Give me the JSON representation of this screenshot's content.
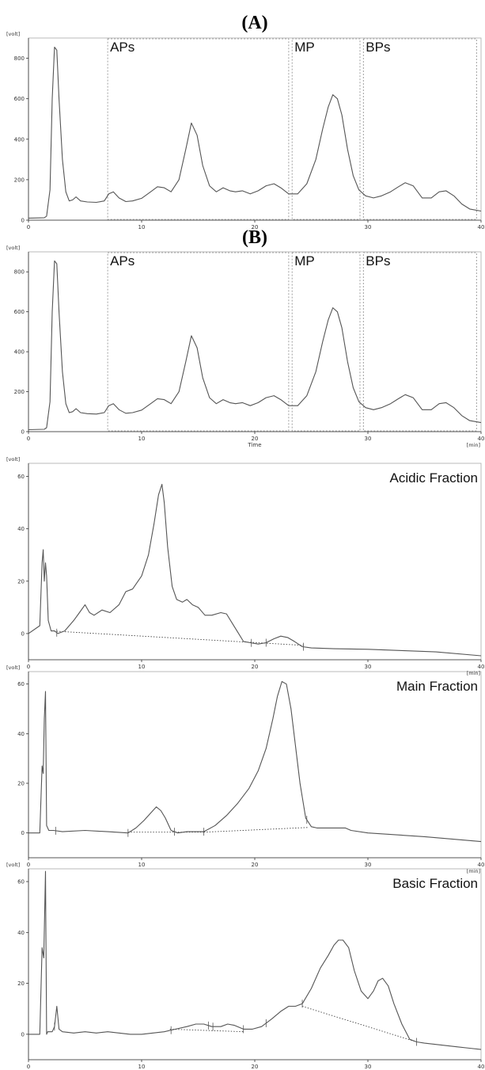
{
  "colors": {
    "trace": "#555555",
    "axis": "#333333",
    "frame": "#aaaaaa",
    "box": "#888888",
    "baseline": "#444444"
  },
  "chart_data": [
    {
      "type": "line",
      "panel_title": "(A)",
      "ylabel": "[volt]",
      "xlabel": "",
      "xunit": "",
      "xlim": [
        0,
        40
      ],
      "ylim": [
        0,
        900
      ],
      "yticks": [
        0,
        200,
        400,
        600,
        800
      ],
      "xticks": [
        0,
        10,
        20,
        30,
        40
      ],
      "regions": [
        {
          "label": "APs",
          "x": [
            7,
            23
          ]
        },
        {
          "label": "MP",
          "x": [
            23.3,
            29.3
          ]
        },
        {
          "label": "BPs",
          "x": [
            29.6,
            39.6
          ]
        }
      ],
      "series": [
        {
          "x": [
            0,
            1.4,
            1.6,
            1.9,
            2.1,
            2.3,
            2.5,
            2.7,
            3.0,
            3.3,
            3.6,
            3.9,
            4.2,
            4.6,
            5.2,
            6.0,
            6.7,
            7.1,
            7.5,
            8.0,
            8.6,
            9.2,
            10.0,
            10.8,
            11.4,
            12.0,
            12.6,
            13.3,
            13.9,
            14.4,
            14.9,
            15.4,
            16.0,
            16.6,
            17.2,
            17.8,
            18.3,
            18.9,
            19.6,
            20.3,
            21.0,
            21.7,
            22.3,
            23.0,
            23.8,
            24.6,
            25.4,
            26.0,
            26.5,
            26.9,
            27.3,
            27.7,
            28.2,
            28.7,
            29.2,
            29.8,
            30.5,
            31.2,
            32.0,
            32.7,
            33.3,
            34.0,
            34.8,
            35.6,
            36.3,
            36.9,
            37.6,
            38.3,
            39.0,
            40.0
          ],
          "y": [
            10,
            12,
            20,
            150,
            600,
            855,
            840,
            600,
            300,
            140,
            95,
            100,
            115,
            95,
            90,
            88,
            95,
            130,
            140,
            110,
            92,
            95,
            108,
            140,
            165,
            160,
            140,
            200,
            350,
            480,
            420,
            270,
            170,
            140,
            160,
            145,
            140,
            145,
            130,
            145,
            170,
            180,
            160,
            130,
            130,
            180,
            300,
            450,
            560,
            620,
            600,
            520,
            350,
            220,
            150,
            120,
            110,
            120,
            140,
            165,
            185,
            170,
            110,
            110,
            140,
            145,
            120,
            80,
            55,
            45
          ]
        }
      ]
    },
    {
      "type": "line",
      "panel_title": "(B)",
      "ylabel": "[volt]",
      "xlabel": "Time",
      "xunit": "[min]",
      "xlim": [
        0,
        40
      ],
      "ylim": [
        0,
        900
      ],
      "yticks": [
        0,
        200,
        400,
        600,
        800
      ],
      "xticks": [
        0,
        10,
        20,
        30,
        40
      ],
      "regions": [
        {
          "label": "APs",
          "x": [
            7,
            23
          ]
        },
        {
          "label": "MP",
          "x": [
            23.3,
            29.3
          ]
        },
        {
          "label": "BPs",
          "x": [
            29.6,
            39.6
          ]
        }
      ],
      "series": [
        {
          "x": [
            0,
            1.4,
            1.6,
            1.9,
            2.1,
            2.3,
            2.5,
            2.7,
            3.0,
            3.3,
            3.6,
            3.9,
            4.2,
            4.6,
            5.2,
            6.0,
            6.7,
            7.1,
            7.5,
            8.0,
            8.6,
            9.2,
            10.0,
            10.8,
            11.4,
            12.0,
            12.6,
            13.3,
            13.9,
            14.4,
            14.9,
            15.4,
            16.0,
            16.6,
            17.2,
            17.8,
            18.3,
            18.9,
            19.6,
            20.3,
            21.0,
            21.7,
            22.3,
            23.0,
            23.8,
            24.6,
            25.4,
            26.0,
            26.5,
            26.9,
            27.3,
            27.7,
            28.2,
            28.7,
            29.2,
            29.8,
            30.5,
            31.2,
            32.0,
            32.7,
            33.3,
            34.0,
            34.8,
            35.6,
            36.3,
            36.9,
            37.6,
            38.3,
            39.0,
            40.0
          ],
          "y": [
            10,
            12,
            20,
            150,
            600,
            855,
            840,
            600,
            300,
            140,
            95,
            100,
            115,
            95,
            90,
            88,
            95,
            130,
            140,
            110,
            92,
            95,
            108,
            140,
            165,
            160,
            140,
            200,
            350,
            480,
            420,
            270,
            170,
            140,
            160,
            145,
            140,
            145,
            130,
            145,
            170,
            180,
            160,
            130,
            130,
            180,
            300,
            450,
            560,
            620,
            600,
            520,
            350,
            220,
            150,
            120,
            110,
            120,
            140,
            165,
            185,
            170,
            110,
            110,
            140,
            145,
            120,
            80,
            55,
            45
          ]
        }
      ]
    },
    {
      "type": "line",
      "fraction_label": "Acidic Fraction",
      "ylabel": "[volt]",
      "xunit": "[min]",
      "xlim": [
        0,
        40
      ],
      "ylim": [
        -10,
        65
      ],
      "yticks": [
        0,
        20,
        40,
        60
      ],
      "xticks": [
        0,
        10,
        20,
        30,
        40
      ],
      "series": [
        {
          "x": [
            0,
            1.0,
            1.2,
            1.3,
            1.4,
            1.5,
            1.6,
            1.75,
            2.0,
            2.3,
            2.6,
            3.2,
            4.0,
            4.5,
            5.0,
            5.4,
            5.8,
            6.5,
            7.2,
            8.0,
            8.6,
            9.2,
            10.0,
            10.6,
            11.1,
            11.5,
            11.8,
            12.0,
            12.3,
            12.7,
            13.1,
            13.6,
            14.0,
            14.5,
            15.0,
            15.6,
            16.2,
            17.0,
            17.5,
            18.0,
            18.5,
            19.0,
            19.6,
            20.3,
            21.0,
            21.7,
            22.3,
            22.9,
            23.5,
            24.2,
            25.0,
            27.0,
            30.0,
            33.0,
            36.0,
            40.0
          ],
          "y": [
            0,
            3,
            27,
            32,
            20,
            27,
            22,
            5,
            1,
            1,
            0,
            1,
            5,
            8,
            11,
            8,
            7,
            9,
            8,
            11,
            16,
            17,
            22,
            30,
            42,
            53,
            57,
            50,
            33,
            18,
            13,
            12,
            13,
            11,
            10,
            7,
            7,
            8,
            7.5,
            4,
            0.5,
            -3,
            -3.5,
            -4,
            -3.5,
            -2,
            -1,
            -1.5,
            -3,
            -5,
            -5.5,
            -5.8,
            -6,
            -6.5,
            -7,
            -8.5
          ]
        }
      ],
      "baselines": [
        [
          [
            2,
            1
          ],
          [
            24.3,
            -4.5
          ]
        ]
      ],
      "markers": [
        2.5,
        19.7,
        21.0,
        24.3
      ]
    },
    {
      "type": "line",
      "fraction_label": "Main Fraction",
      "ylabel": "[volt]",
      "xunit": "[min]",
      "xlim": [
        0,
        40
      ],
      "ylim": [
        -10,
        65
      ],
      "yticks": [
        0,
        20,
        40,
        60
      ],
      "xticks": [
        0,
        10,
        20,
        30,
        40
      ],
      "series": [
        {
          "x": [
            0,
            1.0,
            1.2,
            1.3,
            1.4,
            1.5,
            1.6,
            1.8,
            2.2,
            3.0,
            5.0,
            7.0,
            8.8,
            9.5,
            10.2,
            10.8,
            11.3,
            11.7,
            12.1,
            12.6,
            13.2,
            14.0,
            15.5,
            16.5,
            17.5,
            18.5,
            19.5,
            20.3,
            21.0,
            21.6,
            22.0,
            22.4,
            22.8,
            23.2,
            23.6,
            24.0,
            24.5,
            25.0,
            25.5,
            26.0,
            27.0,
            28.0,
            28.5,
            30.0,
            35.0,
            40.0
          ],
          "y": [
            0,
            0,
            27,
            24,
            46,
            57,
            3,
            1,
            1,
            0.5,
            1,
            0.5,
            0,
            2,
            5,
            8,
            10.5,
            9,
            6,
            1,
            0,
            0.5,
            0.5,
            3,
            7,
            12,
            18,
            25,
            34,
            46,
            55,
            61,
            60,
            50,
            35,
            20,
            6,
            2.5,
            2,
            2,
            2,
            2,
            1,
            0,
            -1.5,
            -3.5
          ]
        }
      ],
      "baselines": [
        [
          [
            8.8,
            0.3
          ],
          [
            15.5,
            0.3
          ]
        ],
        [
          [
            15.5,
            0.3
          ],
          [
            24.7,
            2.2
          ]
        ]
      ],
      "markers": [
        2.4,
        8.8,
        12.9,
        15.5,
        24.6
      ]
    },
    {
      "type": "line",
      "fraction_label": "Basic Fraction",
      "ylabel": "[volt]",
      "xunit": "[min]",
      "xlim": [
        0,
        40
      ],
      "ylim": [
        -10,
        65
      ],
      "yticks": [
        0,
        20,
        40,
        60
      ],
      "xticks": [
        0,
        10,
        20,
        30,
        40
      ],
      "series": [
        {
          "x": [
            0,
            1.0,
            1.2,
            1.35,
            1.5,
            1.6,
            1.7,
            1.9,
            2.1,
            2.3,
            2.5,
            2.7,
            3.0,
            4.0,
            5.0,
            6.0,
            7.0,
            8.0,
            9.0,
            10.0,
            11.0,
            12.0,
            13.0,
            14.0,
            14.8,
            15.5,
            16.2,
            17.0,
            17.6,
            18.2,
            19.0,
            19.8,
            20.6,
            21.5,
            22.3,
            23.0,
            23.6,
            24.2,
            25.0,
            25.8,
            26.5,
            27.0,
            27.4,
            27.8,
            28.3,
            28.8,
            29.4,
            30.0,
            30.5,
            30.9,
            31.3,
            31.8,
            32.3,
            33.0,
            33.7,
            34.3,
            35.0,
            36.0,
            37.0,
            38.0,
            39.0,
            40.0
          ],
          "y": [
            0,
            0,
            34,
            30,
            64,
            0,
            1,
            1,
            1,
            3,
            11,
            2,
            1,
            0.5,
            1,
            0.5,
            1,
            0.5,
            0,
            0,
            0.5,
            1,
            2,
            3,
            4,
            4,
            3,
            3,
            4,
            3.5,
            2,
            2,
            3,
            6,
            9,
            11,
            11,
            12,
            18,
            26,
            31,
            35,
            37,
            37,
            34,
            25,
            17,
            14,
            17,
            21,
            22,
            19,
            12,
            4,
            -2,
            -3,
            -3.5,
            -4,
            -4.5,
            -5,
            -5.5,
            -6
          ]
        }
      ],
      "baselines": [
        [
          [
            12.5,
            2
          ],
          [
            19.0,
            1
          ]
        ],
        [
          [
            24.2,
            11
          ],
          [
            34.3,
            -3
          ]
        ]
      ],
      "markers": [
        2.3,
        12.6,
        15.9,
        16.3,
        19.0,
        21.0,
        24.2,
        34.3
      ]
    }
  ]
}
